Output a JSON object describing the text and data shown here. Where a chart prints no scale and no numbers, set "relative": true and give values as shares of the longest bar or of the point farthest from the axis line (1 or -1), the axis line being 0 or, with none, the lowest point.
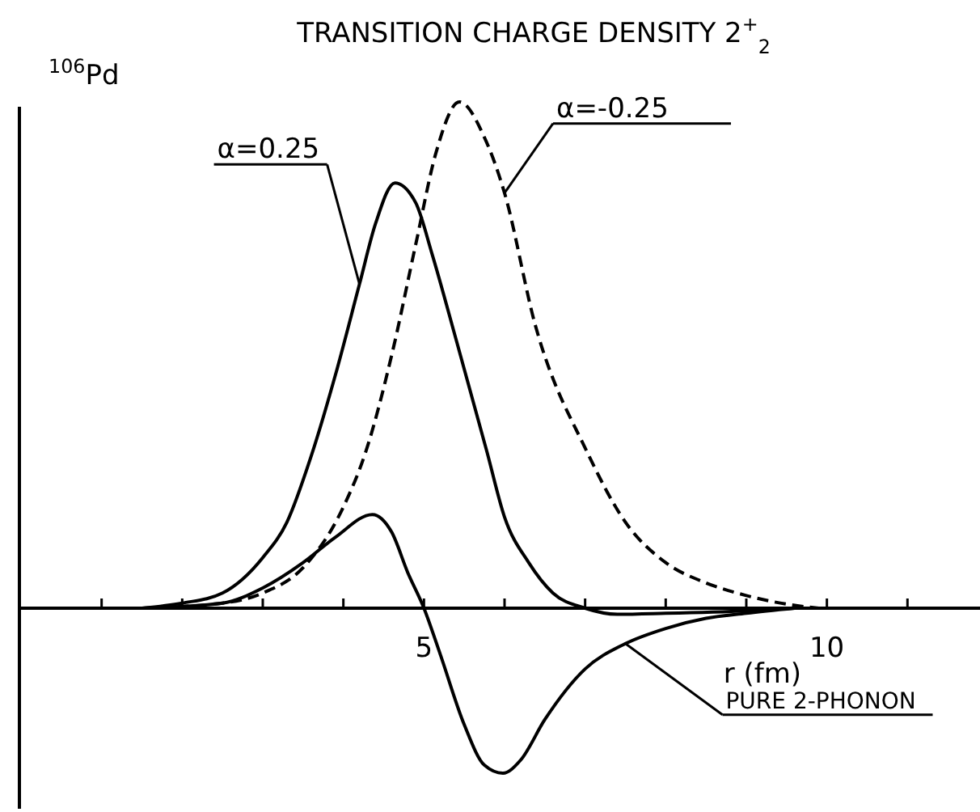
{
  "chart_data": {
    "type": "line",
    "title": "TRANSITION CHARGE DENSITY 2$^{+}$$_{2}$",
    "ylabel": "$^{106}$Pd",
    "xlabel": "r (fm)",
    "relative": true,
    "xlim": [
      0,
      11.9
    ],
    "xticks": [
      {
        "value": 1,
        "label": null
      },
      {
        "value": 2,
        "label": null
      },
      {
        "value": 3,
        "label": null
      },
      {
        "value": 4,
        "label": null
      },
      5,
      {
        "value": 6,
        "label": null
      },
      {
        "value": 7,
        "label": null
      },
      {
        "value": 8,
        "label": null
      },
      {
        "value": 9,
        "label": null
      },
      10,
      {
        "value": 11,
        "label": null
      }
    ],
    "series": [
      {
        "name": "α=0.25",
        "color": "#000000",
        "line_style": "solid",
        "x": [
          1.5,
          2.0,
          2.5,
          3.0,
          3.3,
          3.6,
          3.9,
          4.2,
          4.4,
          4.64,
          4.9,
          5.1,
          5.4,
          5.78,
          6.0,
          6.3,
          6.6,
          7.0,
          7.4,
          8.0,
          9.0,
          9.6
        ],
        "values": [
          0,
          0.01,
          0.03,
          0.1,
          0.17,
          0.3,
          0.46,
          0.64,
          0.76,
          0.84,
          0.8,
          0.7,
          0.53,
          0.31,
          0.18,
          0.09,
          0.03,
          0,
          -0.012,
          -0.01,
          -0.005,
          0
        ]
      },
      {
        "name": "α=-0.25",
        "color": "#000000",
        "line_style": "dashed",
        "x": [
          1.5,
          2.5,
          3.0,
          3.5,
          4.0,
          4.28,
          4.6,
          4.9,
          5.15,
          5.44,
          5.75,
          6.0,
          6.38,
          7.02,
          7.5,
          8.0,
          8.5,
          9.0,
          9.5,
          9.9
        ],
        "values": [
          0,
          0.01,
          0.03,
          0.08,
          0.2,
          0.31,
          0.5,
          0.72,
          0.9,
          1,
          0.93,
          0.82,
          0.56,
          0.31,
          0.17,
          0.09,
          0.05,
          0.025,
          0.008,
          0
        ]
      },
      {
        "name": "PURE 2-PHONON",
        "color": "#000000",
        "line_style": "solid",
        "x": [
          1.5,
          2.5,
          3.0,
          3.5,
          3.9,
          4.36,
          4.6,
          4.8,
          5.0,
          5.2,
          5.5,
          5.75,
          5.98,
          6.2,
          6.5,
          7.0,
          7.5,
          8.0,
          8.5,
          9.0,
          9.6
        ],
        "values": [
          0,
          0.01,
          0.04,
          0.09,
          0.14,
          0.185,
          0.15,
          0.07,
          0,
          -0.09,
          -0.23,
          -0.31,
          -0.326,
          -0.3,
          -0.22,
          -0.12,
          -0.07,
          -0.04,
          -0.02,
          -0.01,
          0
        ]
      }
    ]
  }
}
